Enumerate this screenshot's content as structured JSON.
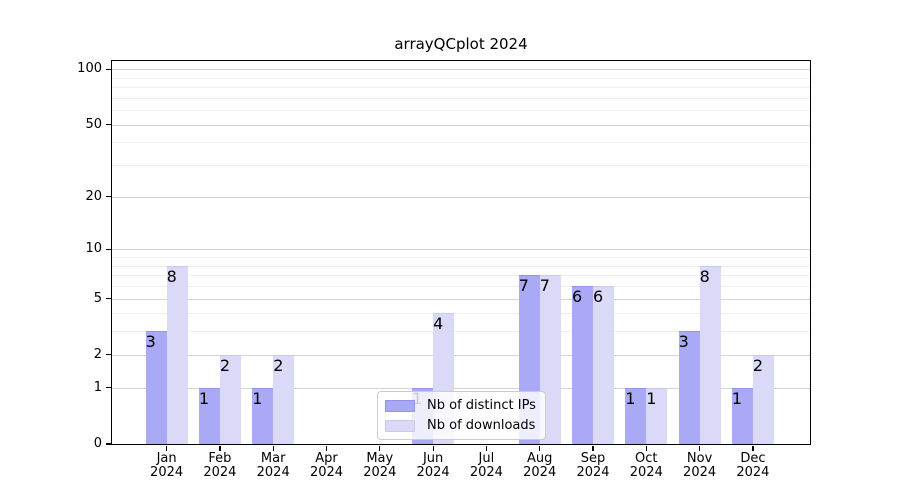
{
  "chart_data": {
    "type": "bar",
    "title": "arrayQCplot 2024",
    "x_months": [
      "Jan",
      "Feb",
      "Mar",
      "Apr",
      "May",
      "Jun",
      "Jul",
      "Aug",
      "Sep",
      "Oct",
      "Nov",
      "Dec"
    ],
    "x_year": "2024",
    "series": [
      {
        "name": "Nb of distinct IPs",
        "color": "#a9a9f6",
        "edge_color": "#9595e8",
        "values": [
          3,
          1,
          1,
          0,
          0,
          1,
          0,
          7,
          6,
          1,
          3,
          1
        ]
      },
      {
        "name": "Nb of downloads",
        "color": "#dadaf8",
        "edge_color": "#c9c9f2",
        "values": [
          8,
          2,
          2,
          0,
          0,
          4,
          0,
          7,
          6,
          1,
          8,
          2
        ]
      }
    ],
    "y_scale": "log10(1+x)",
    "y_major_ticks": [
      0,
      1,
      2,
      5,
      10,
      20,
      50,
      100
    ],
    "y_minor_gridlines": [
      3,
      4,
      6,
      7,
      8,
      9,
      30,
      40,
      60,
      70,
      80,
      90
    ],
    "ylim": [
      0,
      130
    ],
    "grid": "horizontal",
    "legend_position": "bottom-center"
  },
  "colors": {
    "major_grid": "#d4d4d4",
    "minor_grid": "#eeeeee",
    "axis": "#000000",
    "background": "#ffffff"
  }
}
